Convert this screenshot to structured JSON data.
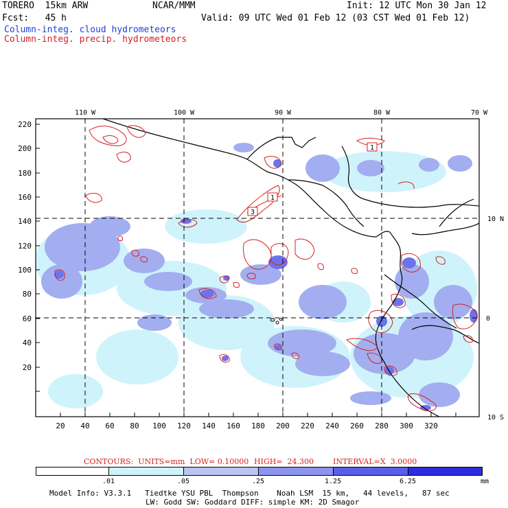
{
  "header": {
    "model": "TORERO  15km ARW",
    "center": "NCAR/MMM",
    "init": "Init: 12 UTC Mon 30 Jan 12",
    "fcst": "Fcst:   45 h",
    "valid": "Valid: 09 UTC Wed 01 Feb 12 (03 CST Wed 01 Feb 12)",
    "field1": "Column-integ. cloud hydrometeors",
    "field2": "Column-integ. precip. hydrometeors"
  },
  "colors": {
    "field1": "#1f3fd6",
    "field2": "#d61f1f",
    "shade_levels": [
      "#ffffff",
      "#cff3fb",
      "#bcc4f2",
      "#a3aef0",
      "#6c73ea",
      "#4a4ae6",
      "#2d2de0"
    ]
  },
  "map": {
    "lon_labels": [
      "110 W",
      "100 W",
      "90 W",
      "80 W",
      "70 W"
    ],
    "lat_labels": [
      "10 N",
      "0",
      "10 S"
    ],
    "y_ticks": [
      "220",
      "200",
      "180",
      "160",
      "140",
      "120",
      "100",
      "80",
      "60",
      "40",
      "20"
    ],
    "x_ticks": [
      "20",
      "40",
      "60",
      "80",
      "100",
      "120",
      "140",
      "160",
      "180",
      "200",
      "220",
      "240",
      "260",
      "280",
      "300",
      "320"
    ],
    "contour_labels": [
      "1",
      "1",
      "3"
    ]
  },
  "contours_line": {
    "units": "CONTOURS:  UNITS=mm  LOW= 0.10000",
    "high": "HIGH=  24.300",
    "interval": "INTERVAL=X  3.0000"
  },
  "colorbar": {
    "labels": [
      ".01",
      ".05",
      ".25",
      "1.25",
      "6.25"
    ],
    "unit": "mm"
  },
  "footer": {
    "line1": "Model Info: V3.3.1   Tiedtke YSU PBL  Thompson    Noah LSM  15 km,   44 levels,   87 sec",
    "line2": "LW: Godd SW: Goddard DIFF: simple KM: 2D Smagor"
  }
}
